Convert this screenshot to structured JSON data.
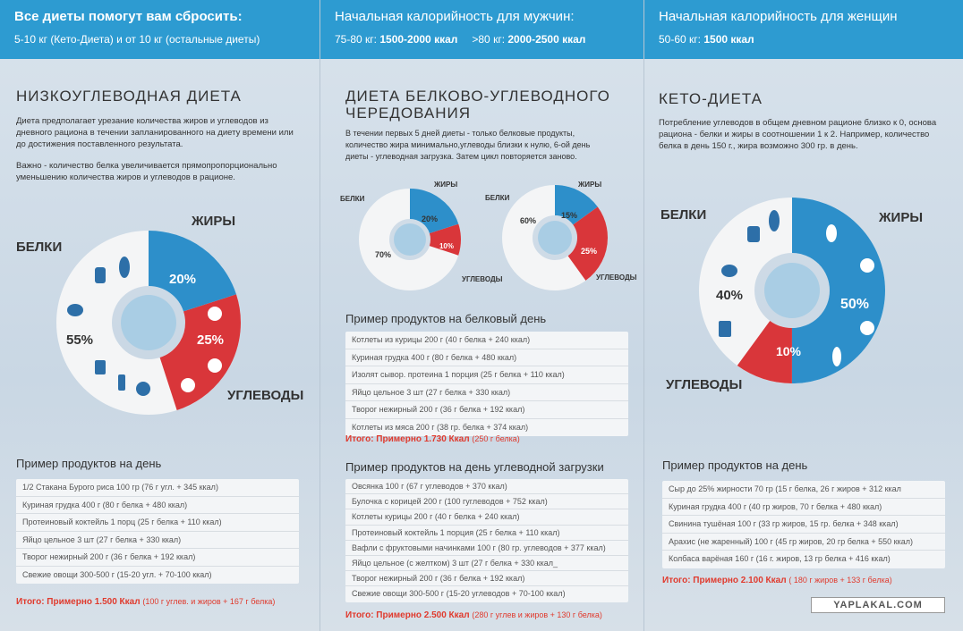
{
  "panel1": {
    "header_title": "Все диеты помогут вам сбросить:",
    "header_sub": "5-10 кг (Кето-Диета) и от 10 кг (остальные диеты)",
    "title": "Низкоуглеводная диета",
    "desc1": "Диета предполагает урезание количества жиров и углеводов из дневного рациона в течении запланированного на диету времени или до достижения поставленного результата.",
    "desc2": "Важно - количество белка увеличивается прямопропорционально уменьшению количества жиров и углеводов в рационе.",
    "chart_labels": {
      "fat": "ЖИРЫ",
      "protein": "БЕЛКИ",
      "carbs": "УГЛЕВОДЫ",
      "fat_pct": "20%",
      "carbs_pct": "25%",
      "protein_pct": "55%"
    },
    "examples_title": "Пример продуктов на день",
    "examples": [
      "1/2 Стакана Бурого риса 100 гр    (76 г угл. + 345 ккал)",
      "Куриная грудка 400 г (80 г белка + 480 ккал)",
      "Протеиновый коктейль 1 порц (25 г белка + 110 ккал)",
      "Яйцо цельное   3 шт (27 г белка + 330 ккал)",
      "Творог нежирный 200 г (36 г белка + 192 ккал)",
      "Свежие овощи  300-500 г   (15-20 угл. + 70-100 ккал)"
    ],
    "total_label": "Итого:  Примерно 1.500 Ккал",
    "total_note": "(100 г углев. и жиров + 167 г белка)"
  },
  "panel2": {
    "header_title": "Начальная калорийность для мужчин:",
    "header_a_kg": "75-80 кг:",
    "header_a_val": "1500-2000 ккал",
    "header_b_kg": ">80 кг:",
    "header_b_val": "2000-2500 ккал",
    "title": "Диета белково-углеводного чередования",
    "desc": "В течении первых 5 дней диеты  - только белковые продукты, количество жира минимально,углеводы близки к нулю, 6-ой день диеты - углеводная загрузка. Затем цикл повторяется заново.",
    "chartA": {
      "fat": "ЖИРЫ",
      "protein": "БЕЛКИ",
      "carbs": "УГЛЕВОДЫ",
      "fat_pct": "20%",
      "carbs_pct": "10%",
      "protein_pct": "70%"
    },
    "chartB": {
      "fat": "ЖИРЫ",
      "protein": "БЕЛКИ",
      "carbs": "УГЛЕВОДЫ",
      "fat_pct": "15%",
      "carbs_pct": "25%",
      "protein_pct": "60%"
    },
    "examples1_title": "Пример продуктов на белковый день",
    "examples1": [
      "Котлеты из курицы 200 г (40 г белка + 240 ккал)",
      "Куриная грудка 400 г (80 г белка + 480 ккал)",
      "Изолят сывор. протеина 1 порция (25 г белка + 110 ккал)",
      "Яйцо цельное  3 шт (27 г белка + 330 ккал)",
      "Творог нежирный 200 г (36 г белка + 192 ккал)",
      "Котлеты из мяса 200 г (38 гр. белка + 374 ккал)"
    ],
    "total1_label": "Итого:  Примерно 1.730 Ккал",
    "total1_note": "(250 г белка)",
    "examples2_title": "Пример продуктов на день углеводной загрузки",
    "examples2": [
      "Овсянка 100 г  (67 г углеводов + 370 ккал)",
      "Булочка с корицей 200 г (100 гуглеводов + 752 ккал)",
      "Котлеты курицы 200 г (40 г белка + 240 ккал)",
      "Протеиновый коктейль 1 порция (25 г белка + 110 ккал)",
      "Вафли с фруктовыми начинками 100 г (80 гр. углеводов + 377 ккал)",
      "Яйцо цельное (с желтком) 3 шт (27 г белка + 330 ккал_",
      "Творог нежирный 200 г (36 г белка + 192 ккал)",
      "Свежие овощи 300-500 г  (15-20 углеводов + 70-100 ккал)"
    ],
    "total2_label": "Итого:  Примерно 2.500 Ккал",
    "total2_note": "(280 г углев и жиров + 130 г белка)"
  },
  "panel3": {
    "header_title": "Начальная калорийность для женщин",
    "header_kg": "50-60 кг:",
    "header_val": "1500 ккал",
    "title": "Кето-диета",
    "desc": "Потребление углеводов в общем дневном рационе близко к 0, основа рациона - белки и жиры в соотношении 1 к 2. Например, количество белка в день 150 г., жира возможно 300 гр. в день.",
    "chart_labels": {
      "fat": "ЖИРЫ",
      "protein": "БЕЛКИ",
      "carbs": "УГЛЕВОДЫ",
      "fat_pct": "50%",
      "carbs_pct": "10%",
      "protein_pct": "40%"
    },
    "examples_title": "Пример продуктов на день",
    "examples": [
      "Сыр до 25% жирности 70 гр (15 г белка, 26 г жиров + 312 ккал",
      "Куриная грудка 400 г (40 гр жиров, 70 г белка + 480 ккал)",
      "Свинина тушёная 100 г (33 гр жиров, 15 гр. белка + 348 ккал)",
      "Арахис (не жаренный) 100 г (45 гр жиров, 20 гр белка + 550 ккал)",
      "Колбаса варёная 160 г (16 г. жиров, 13 гр белка + 416 ккал)"
    ],
    "total_label": "Итого:  Примерно 2.100 Ккал",
    "total_note": "( 180 г жиров + 133 г белка)"
  },
  "watermark": "YAPLAKAL.COM",
  "colors": {
    "blue": "#2d8fca",
    "red": "#d9363a",
    "white": "#f4f5f6",
    "header": "#2d9bd1",
    "total": "#e03a2d"
  }
}
